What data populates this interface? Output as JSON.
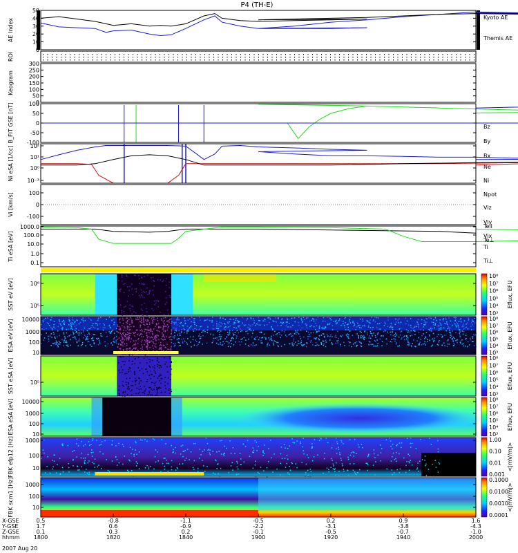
{
  "title": "P4 (TH-E)",
  "date": "2007 Aug 20",
  "colors": {
    "black": "#000000",
    "blue": "#1a1ac8",
    "red": "#cc1010",
    "green": "#22dd22"
  },
  "chart_data": [
    {
      "type": "line",
      "panel": "ae",
      "ylabel": "AE Index",
      "ylim": [
        0,
        50
      ],
      "yticks": [
        "0",
        "10",
        "20",
        "30",
        "40",
        "50"
      ],
      "series": [
        {
          "name": "Kyoto AE",
          "color": "blue",
          "x": [
            1800,
            1805,
            1810,
            1815,
            1818,
            1820,
            1825,
            1830,
            1833,
            1836,
            1840,
            1845,
            1848,
            1850,
            1855,
            1860,
            1870,
            1880,
            1890,
            1900,
            1910,
            1920,
            1930,
            1940,
            1950,
            1960,
            1970,
            1980,
            1990,
            2000
          ],
          "y": [
            34,
            29,
            28,
            27,
            22,
            24,
            25,
            20,
            18,
            19,
            27,
            38,
            43,
            35,
            30,
            27,
            27,
            27,
            28,
            27,
            30,
            35,
            38,
            42,
            45,
            48,
            47,
            46,
            45,
            47
          ]
        },
        {
          "name": "Themis AE",
          "color": "black",
          "x": [
            1800,
            1805,
            1810,
            1815,
            1818,
            1820,
            1825,
            1830,
            1833,
            1836,
            1840,
            1845,
            1848,
            1850,
            1855,
            1860,
            1870,
            1880,
            1890,
            1900,
            1910,
            1920,
            1930,
            1940,
            1950,
            1960,
            1970,
            1980,
            1990,
            2000
          ],
          "y": [
            40,
            42,
            39,
            36,
            33,
            31,
            33,
            30,
            31,
            30,
            33,
            43,
            46,
            40,
            37,
            36,
            37,
            38,
            39,
            38,
            39,
            40,
            41,
            43,
            45,
            46,
            46,
            45,
            44,
            46
          ]
        }
      ]
    },
    {
      "type": "table",
      "panel": "roi",
      "ylabel": "ROI"
    },
    {
      "type": "heatmap",
      "panel": "keogram",
      "ylabel": "Keogram",
      "ylim": [
        0,
        300
      ],
      "yticks": [
        "0",
        "50",
        "100",
        "150",
        "200",
        "250",
        "300"
      ]
    },
    {
      "type": "line",
      "panel": "bfit",
      "ylabel": "B_FIT GSE [nT]",
      "ylim": [
        -100,
        100
      ],
      "yticks": [
        "-100",
        "-50",
        "0",
        "50",
        "100"
      ],
      "series": [
        {
          "name": "Bz",
          "color": "red",
          "x": [],
          "y": []
        },
        {
          "name": "By",
          "color": "green",
          "x": [
            1800,
            1815,
            1816,
            1816.3,
            1826,
            1826.3,
            1850,
            1868,
            1871,
            1874,
            1877,
            1880,
            1885,
            1890,
            1900,
            1910,
            1920,
            1930,
            1940,
            1950,
            1960,
            1970,
            1980,
            1990,
            2000
          ],
          "y": [
            0,
            0,
            0,
            0,
            0,
            0,
            0,
            0,
            -80,
            -20,
            20,
            50,
            75,
            88,
            97,
            96,
            92,
            88,
            83,
            78,
            73,
            68,
            63,
            58,
            52
          ]
        },
        {
          "name": "Bx",
          "color": "blue",
          "x": [
            1800,
            1826,
            1826.5,
            1838,
            1838.5,
            1850,
            1960,
            1975,
            1990,
            2000
          ],
          "y": [
            0,
            0,
            0,
            0,
            0,
            0,
            0,
            0,
            90,
            78
          ]
        }
      ]
    },
    {
      "type": "line",
      "panel": "ni",
      "ylabel": "Ni eSA [1/cc]",
      "ylim": [
        0.001,
        100
      ],
      "yticks": [
        "10⁻³",
        "10⁰",
        "10¹",
        "10²"
      ],
      "series": [
        {
          "name": "Ne",
          "color": "red",
          "x": [
            1800,
            1810,
            1814,
            1816,
            1820,
            1835,
            1838,
            1840,
            1850,
            1900,
            1950,
            1990,
            2000
          ],
          "y": [
            0.3,
            0.3,
            0.25,
            0.01,
            0.001,
            0.001,
            0.01,
            0.3,
            0.3,
            0.3,
            0.3,
            0.5,
            0.2
          ]
        },
        {
          "name": "Ni",
          "color": "blue",
          "x": [
            1800,
            1805,
            1810,
            1815,
            1818,
            1820,
            1835,
            1840,
            1843,
            1845,
            1848,
            1850,
            1855,
            1860,
            1870,
            1880,
            1890,
            1900,
            1910,
            1920,
            1930,
            1940,
            1950,
            1960,
            1970,
            1980,
            1990,
            2000
          ],
          "y": [
            1,
            4,
            15,
            40,
            60,
            60,
            60,
            50,
            5,
            1,
            5,
            50,
            60,
            40,
            30,
            20,
            15,
            10,
            5,
            3,
            3,
            2.5,
            2,
            2,
            1.5,
            1.5,
            1.2,
            1
          ]
        },
        {
          "name": "Npot",
          "color": "black",
          "x": [
            1800,
            1810,
            1815,
            1820,
            1825,
            1830,
            1835,
            1840,
            1845,
            1850,
            1860,
            1880,
            1900,
            1920,
            1940,
            1960,
            1980,
            2000
          ],
          "y": [
            0.2,
            0.2,
            0.3,
            1,
            3,
            4,
            3,
            1,
            0.2,
            0.2,
            0.2,
            0.2,
            0.2,
            0.2,
            0.3,
            0.4,
            0.5,
            0.4
          ]
        }
      ]
    },
    {
      "type": "line",
      "panel": "vi",
      "ylabel": "Vi [km/s]",
      "ylim": [
        -100,
        100
      ],
      "yticks": [
        "-100",
        "0",
        "100"
      ],
      "series": [
        {
          "name": "Viz",
          "color": "red",
          "x": [],
          "y": []
        },
        {
          "name": "Viy",
          "color": "green",
          "x": [],
          "y": []
        },
        {
          "name": "Vix",
          "color": "blue",
          "x": [],
          "y": []
        }
      ]
    },
    {
      "type": "line",
      "panel": "ti",
      "ylabel": "Ti eSA [eV]",
      "ylim": [
        0.1,
        1000
      ],
      "yticks": [
        "0.1",
        "1.0",
        "10.0",
        "100.0",
        "1000.0"
      ],
      "series": [
        {
          "name": "Tell",
          "color": "black",
          "x": [
            1800,
            1810,
            1815,
            1820,
            1830,
            1835,
            1840,
            1850,
            1900,
            1950,
            2000
          ],
          "y": [
            500,
            500,
            500,
            300,
            250,
            300,
            500,
            500,
            500,
            300,
            200
          ]
        },
        {
          "name": "Te⊥",
          "color": "red",
          "x": [],
          "y": []
        },
        {
          "name": "Ti",
          "color": "green",
          "x": [
            1800,
            1810,
            1814,
            1816,
            1820,
            1830,
            1836,
            1838,
            1840,
            1850,
            1900,
            1920,
            1935,
            1940,
            1945,
            1960,
            1980,
            1990,
            1995,
            2000
          ],
          "y": [
            800,
            700,
            500,
            50,
            20,
            20,
            20,
            60,
            300,
            800,
            800,
            700,
            500,
            100,
            30,
            30,
            40,
            100,
            300,
            500
          ]
        },
        {
          "name": "Ti⊥",
          "color": "blue",
          "x": [],
          "y": []
        }
      ]
    },
    {
      "type": "heatmap",
      "panel": "sst1",
      "ylabel": "SST eV [eV]",
      "ylim": [
        100000,
        1000000
      ],
      "yticks": [
        "10⁵",
        "10⁶"
      ],
      "cbar_label": "Eflux, EFU",
      "cbar_ticks": [
        "10³",
        "10⁴",
        "10⁵",
        "10⁶",
        "10⁷",
        "10⁸"
      ]
    },
    {
      "type": "heatmap",
      "panel": "esa1",
      "ylabel": "ESA eV [eV]",
      "ylim": [
        10,
        10000
      ],
      "yticks": [
        "10",
        "100",
        "1000",
        "10000"
      ],
      "cbar_label": "Eflux, EFU",
      "cbar_ticks": [
        "10³",
        "10⁴",
        "10⁵",
        "10⁶",
        "10⁷",
        "10⁸"
      ]
    },
    {
      "type": "heatmap",
      "panel": "sst2",
      "ylabel": "SST eSA [eV]",
      "ylim": [
        100000,
        1000000
      ],
      "yticks": [
        "10⁵"
      ],
      "cbar_label": "Eflux, EFU",
      "cbar_ticks": [
        "10³",
        "10⁴",
        "10⁵",
        "10⁶",
        "10⁷",
        "10⁸"
      ]
    },
    {
      "type": "heatmap",
      "panel": "esa2",
      "ylabel": "ESA eSA [eV]",
      "ylim": [
        10,
        10000
      ],
      "yticks": [
        "10",
        "100",
        "1000",
        "10000"
      ],
      "cbar_label": "Eflux, EFU",
      "cbar_ticks": [
        "10³",
        "10⁴",
        "10⁵",
        "10⁶",
        "10⁷",
        "10⁸"
      ]
    },
    {
      "type": "heatmap",
      "panel": "fbk1",
      "ylabel": "FBK efp12 [Hz]",
      "ylim": [
        1,
        2000
      ],
      "yticks": [
        "10",
        "100",
        "1000"
      ],
      "cbar_label": "<|mV/m|>",
      "cbar_ticks": [
        "0.001",
        "0.01",
        "0.10",
        "1.00"
      ]
    },
    {
      "type": "heatmap",
      "panel": "fbk2",
      "ylabel": "FBK scm1 [Hz]",
      "ylim": [
        1,
        2000
      ],
      "yticks": [
        "10",
        "100",
        "1000"
      ],
      "cbar_label": "<|mV/m|>",
      "cbar_ticks": [
        "0.0001",
        "0.0010",
        "0.0100",
        "0.1000"
      ]
    }
  ],
  "xaxis": {
    "xlim": [
      1800,
      2000
    ],
    "row_labels": [
      "X-GSE",
      "Y-GSE",
      "Z-GSE",
      "hhmm"
    ],
    "ticks": [
      {
        "hhmm": "1800",
        "x": "0.5",
        "y": "1.7",
        "z": "0.1"
      },
      {
        "hhmm": "1820",
        "x": "-0.8",
        "y": "0.6",
        "z": "0.3"
      },
      {
        "hhmm": "1840",
        "x": "-1.1",
        "y": "-0.9",
        "z": "0.2"
      },
      {
        "hhmm": "1900",
        "x": "-0.5",
        "y": "-2.2",
        "z": "-0.1"
      },
      {
        "hhmm": "1920",
        "x": "0.2",
        "y": "-3.1",
        "z": "-0.5"
      },
      {
        "hhmm": "1940",
        "x": "0.9",
        "y": "-3.8",
        "z": "-0.7"
      },
      {
        "hhmm": "2000",
        "x": "1.6",
        "y": "-4.3",
        "z": "-1.0"
      }
    ]
  }
}
